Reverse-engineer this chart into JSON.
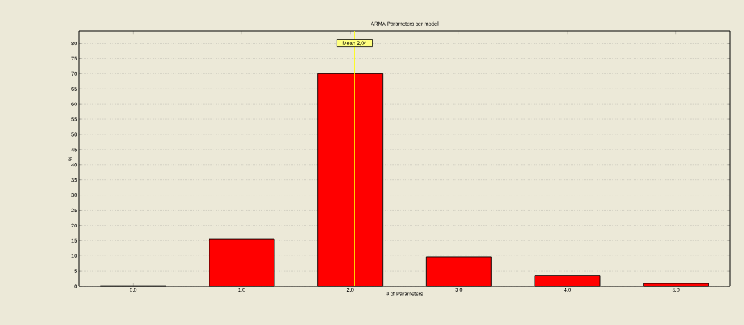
{
  "chart_data": {
    "type": "bar",
    "title": "ARMA Parameters per model",
    "xlabel": "# of Parameters",
    "ylabel": "%",
    "x": [
      0,
      1,
      2,
      3,
      4,
      5
    ],
    "values": [
      0.2,
      15.5,
      70,
      9.6,
      3.5,
      0.9
    ],
    "color": "#ff0000",
    "xlim": [
      -0.5,
      5.5
    ],
    "xticks": [
      {
        "value": 0,
        "label": "0,0"
      },
      {
        "value": 1,
        "label": "1,0"
      },
      {
        "value": 2,
        "label": "2,0"
      },
      {
        "value": 3,
        "label": "3,0"
      },
      {
        "value": 4,
        "label": "4,0"
      },
      {
        "value": 5,
        "label": "5,0"
      }
    ],
    "ylim": [
      0,
      84
    ],
    "yticks": [
      0,
      5,
      10,
      15,
      20,
      25,
      30,
      35,
      40,
      45,
      50,
      55,
      60,
      65,
      70,
      75,
      80
    ],
    "grid": "y",
    "ref_lines": [
      {
        "axis": "x",
        "value": 2.04,
        "label": "Mean 2,04",
        "color": "#ffff00"
      }
    ]
  }
}
